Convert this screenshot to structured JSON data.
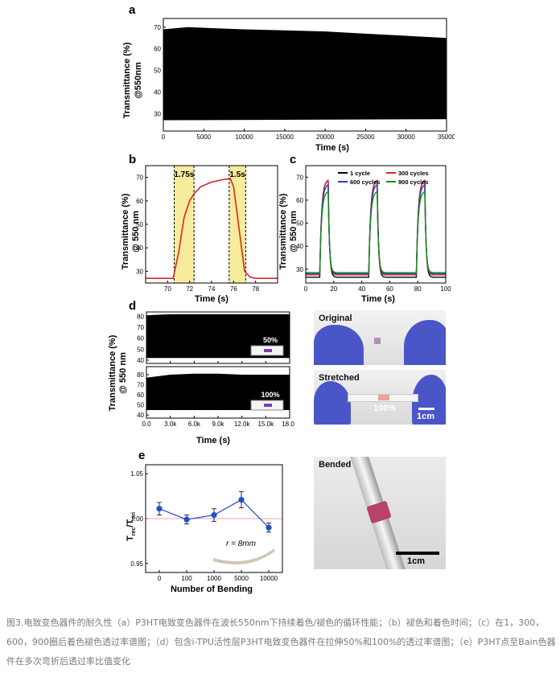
{
  "panels": {
    "a": {
      "label": "a"
    },
    "b": {
      "label": "b",
      "ann1": "1.75s",
      "ann2": "1.5s"
    },
    "c": {
      "label": "c"
    },
    "d": {
      "label": "d",
      "top_badge": "50%",
      "bottom_badge": "100%"
    },
    "e": {
      "label": "e",
      "radius_note": "r = 8mm"
    }
  },
  "photos": {
    "original": "Original",
    "stretched": "Stretched",
    "stretched_pct": "100%",
    "stretched_scale": "1cm",
    "bended": "Bended",
    "bended_scale": "1cm"
  },
  "caption": "图3.电致变色器件的耐久性（a）P3HT电致变色器件在波长550nm下持续着色/褪色的循环性能；（b）褪色和着色时间；（c）在1，300，600，900圈后着色褪色透过率谱图；（d）包含i-TPU活性层P3HT电致变色器件在拉伸50%和100%的透过率谱图；（e）P3HT点至Bain色器件在多次弯折后透过率比值变化",
  "chart_data": [
    {
      "id": "a",
      "type": "area",
      "xlabel": "Time (s)",
      "ylabel": "Transmittance (%)",
      "ylabel2": "@550nm",
      "xlim": [
        0,
        35000
      ],
      "ylim": [
        22,
        74
      ],
      "xticks": [
        0,
        5000,
        10000,
        15000,
        20000,
        25000,
        30000,
        35000
      ],
      "yticks": [
        30,
        40,
        50,
        60,
        70
      ],
      "upper": {
        "x": [
          0,
          3000,
          10000,
          15000,
          20000,
          25000,
          30000,
          35000
        ],
        "y": [
          69,
          70,
          69,
          68.5,
          68,
          67,
          66,
          65
        ]
      },
      "lower": {
        "x": [
          0,
          35000
        ],
        "y": [
          27,
          27.5
        ]
      }
    },
    {
      "id": "b",
      "type": "line",
      "xlabel": "Time (s)",
      "ylabel": "Transmittance (%)",
      "ylabel2": "@ 550 nm",
      "xlim": [
        68,
        80
      ],
      "ylim": [
        25,
        75
      ],
      "xticks": [
        70,
        72,
        74,
        76,
        78
      ],
      "yticks": [
        30,
        40,
        50,
        60,
        70
      ],
      "highlights": [
        [
          70.6,
          72.4
        ],
        [
          75.6,
          77.1
        ]
      ],
      "series": [
        {
          "color": "#d62728",
          "x": [
            68,
            70.5,
            71,
            71.5,
            72,
            72.4,
            73,
            74,
            75,
            75.7,
            76,
            76.5,
            77,
            77.5,
            78,
            80
          ],
          "y": [
            27,
            27,
            38,
            53,
            60,
            63,
            66,
            68,
            69,
            69.5,
            66,
            48,
            30,
            27.5,
            27,
            27
          ]
        }
      ]
    },
    {
      "id": "c",
      "type": "line",
      "xlabel": "Time (s)",
      "ylabel": "Transmittance (%)",
      "ylabel2": "@ 550 nm",
      "xlim": [
        0,
        100
      ],
      "ylim": [
        24,
        75
      ],
      "xticks": [
        0,
        20,
        40,
        60,
        80,
        100
      ],
      "yticks": [
        30,
        40,
        50,
        60,
        70
      ],
      "pulses": [
        10,
        45,
        79
      ],
      "series": [
        {
          "name": "1 cycle",
          "color": "#000000",
          "base": 26.5,
          "peak": 69
        },
        {
          "name": "300 cycles",
          "color": "#d62728",
          "base": 27.5,
          "peak": 69
        },
        {
          "name": "600 cycles",
          "color": "#1f3fbf",
          "base": 28,
          "peak": 67
        },
        {
          "name": "900 cycles",
          "color": "#1a8a1a",
          "base": 28.5,
          "peak": 64
        }
      ]
    },
    {
      "id": "d",
      "type": "area",
      "xlabel": "Time (s)",
      "ylabel": "Transmittance (%)",
      "ylabel2": "@ 550 nm",
      "xlim": [
        0,
        18000
      ],
      "xticks": [
        0,
        3000,
        6000,
        9000,
        12000,
        15000,
        18000
      ],
      "xticklabels": [
        "0.0",
        "3.0k",
        "6.0k",
        "9.0k",
        "12.0k",
        "15.0k",
        "18.0k"
      ],
      "subplots": [
        {
          "ylim": [
            37,
            84
          ],
          "yticks": [
            40,
            50,
            60,
            70,
            80
          ],
          "upper": 81,
          "lower": 42
        },
        {
          "ylim": [
            37,
            88
          ],
          "yticks": [
            40,
            50,
            60,
            70,
            80
          ],
          "upper": 80,
          "lower": 45
        }
      ]
    },
    {
      "id": "e",
      "type": "scatter",
      "xlabel": "Number of Bending",
      "ylabel": "T_rec/T_ori",
      "categories": [
        "0",
        "100",
        "1000",
        "5000",
        "10000"
      ],
      "values": [
        1.011,
        0.999,
        1.004,
        1.021,
        0.99
      ],
      "errors": [
        0.007,
        0.005,
        0.007,
        0.009,
        0.005
      ],
      "ylim": [
        0.94,
        1.06
      ],
      "yticks": [
        0.95,
        1.0,
        1.05
      ],
      "yticklabels": [
        "0.95",
        "1.00",
        "1.05"
      ],
      "reference": 1.0,
      "color": "#1f4fd1"
    }
  ]
}
